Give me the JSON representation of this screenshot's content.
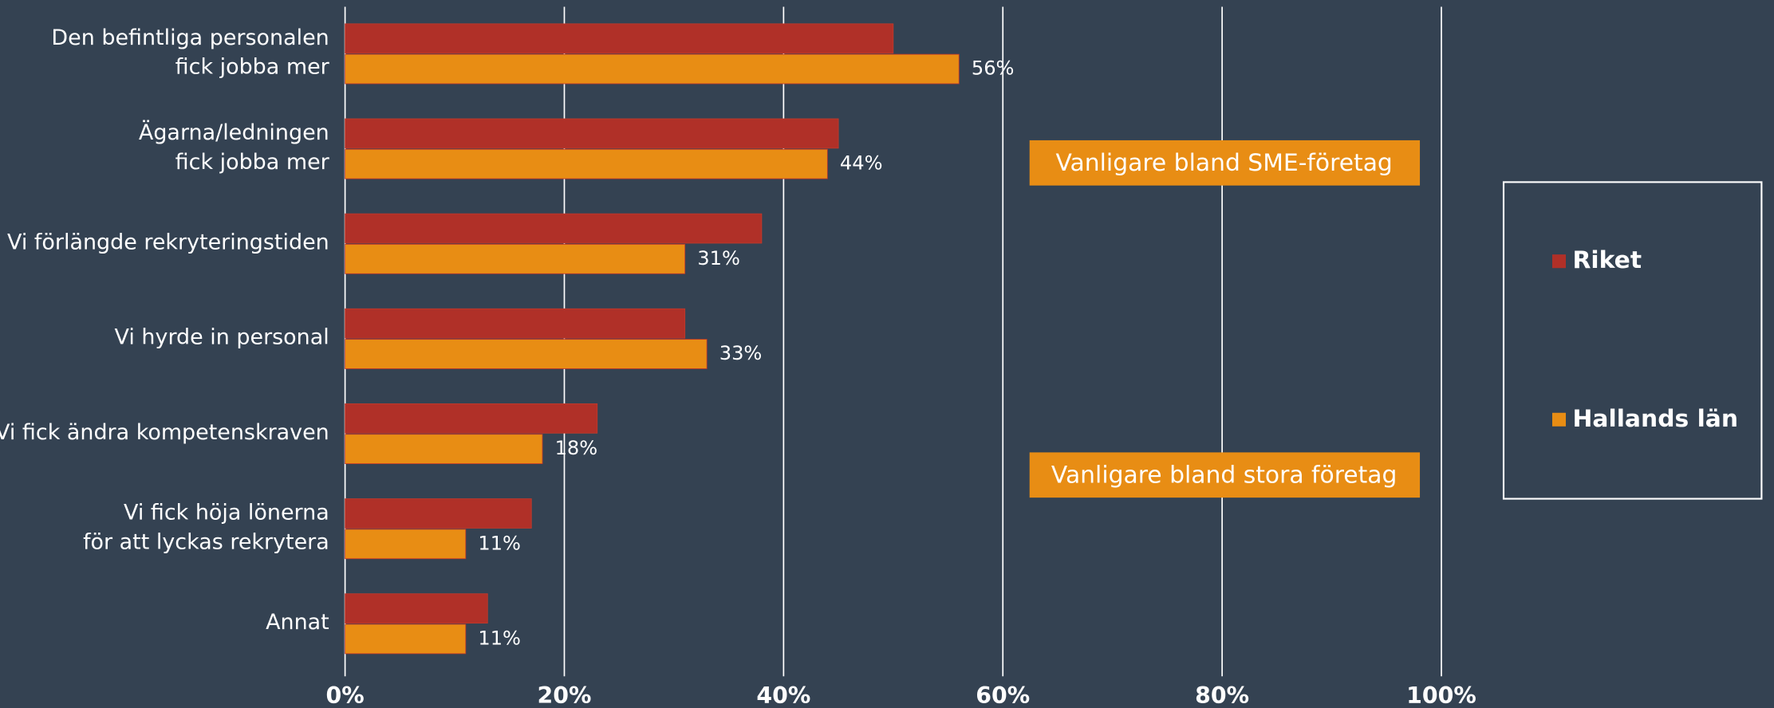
{
  "chart_data": {
    "type": "hbar",
    "categories": [
      [
        "Den befintliga personalen",
        "fick jobba mer"
      ],
      [
        "Ägarna/ledningen",
        "fick jobba mer"
      ],
      [
        "Vi förlängde rekryteringstiden"
      ],
      [
        "Vi hyrde in personal"
      ],
      [
        "Vi fick ändra kompetenskraven"
      ],
      [
        "Vi fick höja lönerna",
        "för att lyckas rekrytera"
      ],
      [
        "Annat"
      ]
    ],
    "series": [
      {
        "name": "Riket",
        "color": "#b03028",
        "values": [
          50,
          45,
          38,
          31,
          23,
          17,
          13
        ]
      },
      {
        "name": "Hallands län",
        "color": "#e88d14",
        "values": [
          56,
          44,
          31,
          33,
          18,
          11,
          11
        ],
        "value_labels": [
          "56%",
          "44%",
          "31%",
          "33%",
          "18%",
          "11%",
          "11%"
        ]
      }
    ],
    "xlim": [
      0,
      100
    ],
    "xticks": [
      {
        "value": 0,
        "label": "0%"
      },
      {
        "value": 20,
        "label": "20%"
      },
      {
        "value": 40,
        "label": "40%"
      },
      {
        "value": 60,
        "label": "60%"
      },
      {
        "value": 80,
        "label": "80%"
      },
      {
        "value": 100,
        "label": "100%"
      }
    ],
    "grid": true,
    "annotations": [
      "Vanligare bland SME-företag",
      "Vanligare bland stora företag"
    ],
    "legend": "right"
  }
}
